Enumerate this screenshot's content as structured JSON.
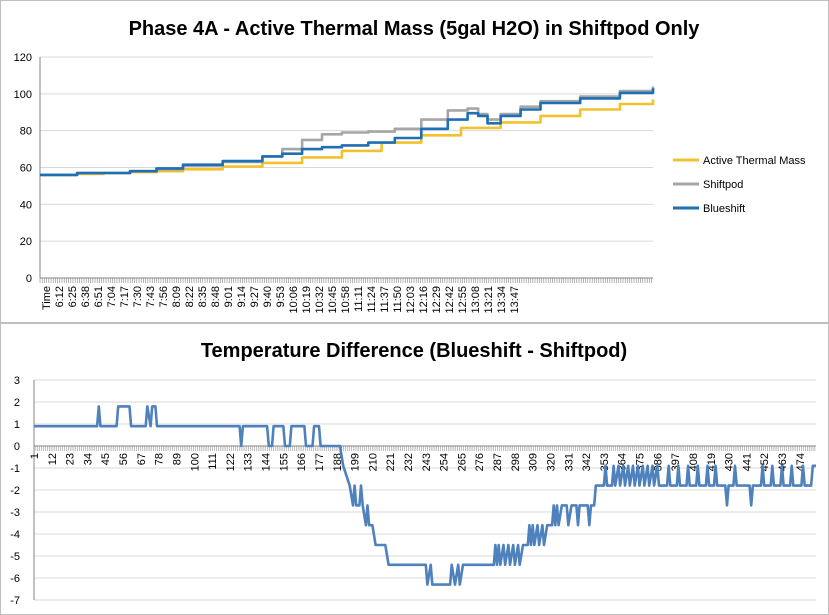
{
  "charts": [
    {
      "title": "Phase 4A - Active Thermal Mass (5gal H2O) in Shiftpod Only",
      "y_ticks": [
        "0",
        "20",
        "40",
        "60",
        "80",
        "100",
        "120"
      ],
      "x_first_label": "Time",
      "x_labels": [
        "6:12",
        "6:25",
        "6:38",
        "6:51",
        "7:04",
        "7:17",
        "7:30",
        "7:43",
        "7:56",
        "8:09",
        "8:22",
        "8:35",
        "8:48",
        "9:01",
        "9:14",
        "9:27",
        "9:40",
        "9:53",
        "10:06",
        "10:19",
        "10:32",
        "10:45",
        "10:58",
        "11:11",
        "11:24",
        "11:37",
        "11:50",
        "12:03",
        "12:16",
        "12:29",
        "12:42",
        "12:55",
        "13:08",
        "13:21",
        "13:34",
        "13:47"
      ],
      "legend": [
        "Active Thermal Mass",
        "Shiftpod",
        "Blueshift"
      ]
    },
    {
      "title": "Temperature Difference (Blueshift - Shiftpod)",
      "y_ticks": [
        "3",
        "2",
        "1",
        "0",
        "-1",
        "-2",
        "-3",
        "-4",
        "-5",
        "-6",
        "-7"
      ],
      "x_labels": [
        "1",
        "12",
        "23",
        "34",
        "45",
        "56",
        "67",
        "78",
        "89",
        "100",
        "111",
        "122",
        "133",
        "144",
        "155",
        "166",
        "177",
        "188",
        "199",
        "210",
        "221",
        "232",
        "243",
        "254",
        "265",
        "276",
        "287",
        "298",
        "309",
        "320",
        "331",
        "342",
        "353",
        "364",
        "375",
        "386",
        "397",
        "408",
        "419",
        "430",
        "441",
        "452",
        "463",
        "474"
      ]
    }
  ],
  "chart_data": [
    {
      "type": "line",
      "title": "Phase 4A - Active Thermal Mass (5gal H2O) in Shiftpod Only",
      "ylim": [
        0,
        120
      ],
      "x_range": [
        "6:12",
        "13:55"
      ],
      "legend_position": "right",
      "grid": true,
      "series": [
        {
          "name": "Active Thermal Mass",
          "color": "#f2c12e",
          "points": [
            [
              "6:00",
              56
            ],
            [
              "6:40",
              56.5
            ],
            [
              "7:00",
              57
            ],
            [
              "7:20",
              57.5
            ],
            [
              "7:40",
              58
            ],
            [
              "8:00",
              59
            ],
            [
              "8:30",
              60.5
            ],
            [
              "9:00",
              62.5
            ],
            [
              "9:30",
              65.5
            ],
            [
              "10:00",
              69
            ],
            [
              "10:30",
              73.5
            ],
            [
              "11:00",
              77.5
            ],
            [
              "11:30",
              81.5
            ],
            [
              "12:00",
              84.5
            ],
            [
              "12:30",
              88
            ],
            [
              "13:00",
              91.5
            ],
            [
              "13:30",
              94.5
            ],
            [
              "13:55",
              97
            ]
          ]
        },
        {
          "name": "Shiftpod",
          "color": "#a6a6a6",
          "points": [
            [
              "6:00",
              56
            ],
            [
              "6:40",
              57
            ],
            [
              "7:20",
              58
            ],
            [
              "7:40",
              59
            ],
            [
              "8:00",
              61
            ],
            [
              "8:30",
              63
            ],
            [
              "9:00",
              66
            ],
            [
              "9:15",
              70
            ],
            [
              "9:30",
              75
            ],
            [
              "9:45",
              78
            ],
            [
              "10:00",
              79
            ],
            [
              "10:20",
              79.5
            ],
            [
              "10:40",
              81
            ],
            [
              "11:00",
              86
            ],
            [
              "11:20",
              91
            ],
            [
              "11:35",
              92
            ],
            [
              "11:43",
              89
            ],
            [
              "11:50",
              86
            ],
            [
              "12:00",
              89
            ],
            [
              "12:15",
              93
            ],
            [
              "12:30",
              96
            ],
            [
              "13:00",
              98.5
            ],
            [
              "13:30",
              101.5
            ],
            [
              "13:55",
              104
            ]
          ]
        },
        {
          "name": "Blueshift",
          "color": "#1f6fb5",
          "points": [
            [
              "6:00",
              56
            ],
            [
              "6:40",
              57
            ],
            [
              "7:20",
              58
            ],
            [
              "7:40",
              59.5
            ],
            [
              "8:00",
              61.5
            ],
            [
              "8:30",
              63.5
            ],
            [
              "9:00",
              66
            ],
            [
              "9:15",
              67.5
            ],
            [
              "9:30",
              70
            ],
            [
              "9:45",
              71
            ],
            [
              "10:00",
              72
            ],
            [
              "10:20",
              73.5
            ],
            [
              "10:40",
              76
            ],
            [
              "11:00",
              81
            ],
            [
              "11:20",
              86
            ],
            [
              "11:35",
              89.5
            ],
            [
              "11:43",
              88
            ],
            [
              "11:50",
              84
            ],
            [
              "12:00",
              88
            ],
            [
              "12:15",
              91.5
            ],
            [
              "12:30",
              95
            ],
            [
              "13:00",
              97.5
            ],
            [
              "13:30",
              100.5
            ],
            [
              "13:55",
              103
            ]
          ]
        }
      ]
    },
    {
      "type": "line",
      "title": "Temperature Difference (Blueshift - Shiftpod)",
      "ylim": [
        -7,
        3
      ],
      "xlim": [
        1,
        484
      ],
      "grid": true,
      "series": [
        {
          "color": "#4f81bd",
          "points": [
            [
              1,
              0.9
            ],
            [
              40,
              0.9
            ],
            [
              41,
              1.8
            ],
            [
              42,
              0.9
            ],
            [
              52,
              0.9
            ],
            [
              53,
              1.8
            ],
            [
              60,
              1.8
            ],
            [
              61,
              0.9
            ],
            [
              70,
              0.9
            ],
            [
              71,
              1.8
            ],
            [
              73,
              0.9
            ],
            [
              74,
              1.8
            ],
            [
              76,
              1.8
            ],
            [
              77,
              0.9
            ],
            [
              128,
              0.9
            ],
            [
              129,
              0
            ],
            [
              130,
              0.9
            ],
            [
              145,
              0.9
            ],
            [
              146,
              0
            ],
            [
              148,
              0
            ],
            [
              149,
              0.9
            ],
            [
              155,
              0.9
            ],
            [
              156,
              0
            ],
            [
              159,
              0
            ],
            [
              160,
              0.9
            ],
            [
              168,
              0.9
            ],
            [
              169,
              0
            ],
            [
              173,
              0
            ],
            [
              174,
              0.9
            ],
            [
              177,
              0.9
            ],
            [
              178,
              0
            ],
            [
              190,
              0
            ],
            [
              192,
              -0.9
            ],
            [
              196,
              -1.8
            ],
            [
              198,
              -2.7
            ],
            [
              199,
              -1.8
            ],
            [
              200,
              -2.7
            ],
            [
              202,
              -2.7
            ],
            [
              203,
              -1.8
            ],
            [
              204,
              -2.7
            ],
            [
              206,
              -3.6
            ],
            [
              207,
              -2.7
            ],
            [
              208,
              -3.6
            ],
            [
              210,
              -3.6
            ],
            [
              212,
              -4.5
            ],
            [
              218,
              -4.5
            ],
            [
              220,
              -5.4
            ],
            [
              243,
              -5.4
            ],
            [
              244,
              -6.3
            ],
            [
              246,
              -5.4
            ],
            [
              247,
              -6.3
            ],
            [
              258,
              -6.3
            ],
            [
              259,
              -5.4
            ],
            [
              261,
              -6.3
            ],
            [
              263,
              -5.4
            ],
            [
              264,
              -6.3
            ],
            [
              266,
              -5.4
            ],
            [
              285,
              -5.4
            ],
            [
              286,
              -4.5
            ],
            [
              287,
              -5.4
            ],
            [
              288,
              -4.5
            ],
            [
              289,
              -5.4
            ],
            [
              291,
              -4.5
            ],
            [
              292,
              -5.4
            ],
            [
              294,
              -4.5
            ],
            [
              295,
              -5.4
            ],
            [
              297,
              -4.5
            ],
            [
              298,
              -5.4
            ],
            [
              300,
              -4.5
            ],
            [
              301,
              -5.4
            ],
            [
              303,
              -4.5
            ],
            [
              306,
              -4.5
            ],
            [
              307,
              -3.6
            ],
            [
              308,
              -4.5
            ],
            [
              309,
              -3.6
            ],
            [
              310,
              -4.5
            ],
            [
              312,
              -3.6
            ],
            [
              313,
              -4.5
            ],
            [
              315,
              -3.6
            ],
            [
              316,
              -4.5
            ],
            [
              318,
              -3.6
            ],
            [
              321,
              -3.6
            ],
            [
              322,
              -2.7
            ],
            [
              323,
              -3.6
            ],
            [
              324,
              -2.7
            ],
            [
              325,
              -3.6
            ],
            [
              327,
              -2.7
            ],
            [
              330,
              -2.7
            ],
            [
              331,
              -3.6
            ],
            [
              333,
              -2.7
            ],
            [
              336,
              -2.7
            ],
            [
              337,
              -3.6
            ],
            [
              338,
              -2.7
            ],
            [
              343,
              -2.7
            ],
            [
              344,
              -3.6
            ],
            [
              345,
              -2.7
            ],
            [
              347,
              -2.7
            ],
            [
              348,
              -1.8
            ],
            [
              353,
              -1.8
            ],
            [
              354,
              -0.9
            ],
            [
              355,
              -1.8
            ],
            [
              358,
              -1.8
            ],
            [
              359,
              -0.9
            ],
            [
              360,
              -1.8
            ],
            [
              362,
              -0.9
            ],
            [
              363,
              -1.8
            ],
            [
              365,
              -0.9
            ],
            [
              366,
              -1.8
            ],
            [
              368,
              -0.9
            ],
            [
              369,
              -1.8
            ],
            [
              371,
              -0.9
            ],
            [
              372,
              -1.8
            ],
            [
              374,
              -0.9
            ],
            [
              375,
              -1.8
            ],
            [
              377,
              -0.9
            ],
            [
              378,
              -1.8
            ],
            [
              380,
              -0.9
            ],
            [
              381,
              -1.8
            ],
            [
              383,
              -0.9
            ],
            [
              384,
              -1.8
            ],
            [
              386,
              -0.9
            ],
            [
              387,
              -1.8
            ],
            [
              392,
              -1.8
            ],
            [
              393,
              -0.9
            ],
            [
              394,
              -1.8
            ],
            [
              398,
              -1.8
            ],
            [
              399,
              -0.9
            ],
            [
              400,
              -1.8
            ],
            [
              404,
              -1.8
            ],
            [
              405,
              -0.9
            ],
            [
              406,
              -1.8
            ],
            [
              410,
              -1.8
            ],
            [
              411,
              -0.9
            ],
            [
              412,
              -1.8
            ],
            [
              416,
              -1.8
            ],
            [
              417,
              -0.9
            ],
            [
              418,
              -1.8
            ],
            [
              421,
              -1.8
            ],
            [
              422,
              -0.9
            ],
            [
              423,
              -1.8
            ],
            [
              428,
              -1.8
            ],
            [
              429,
              -2.7
            ],
            [
              430,
              -1.8
            ],
            [
              433,
              -1.8
            ],
            [
              434,
              -0.9
            ],
            [
              435,
              -1.8
            ],
            [
              443,
              -1.8
            ],
            [
              444,
              -2.7
            ],
            [
              445,
              -1.8
            ],
            [
              450,
              -1.8
            ],
            [
              451,
              -0.9
            ],
            [
              452,
              -1.8
            ],
            [
              456,
              -1.8
            ],
            [
              457,
              -0.9
            ],
            [
              458,
              -1.8
            ],
            [
              462,
              -1.8
            ],
            [
              463,
              -0.9
            ],
            [
              464,
              -1.8
            ],
            [
              468,
              -1.8
            ],
            [
              469,
              -0.9
            ],
            [
              470,
              -1.8
            ],
            [
              475,
              -1.8
            ],
            [
              476,
              -0.9
            ],
            [
              477,
              -1.8
            ],
            [
              481,
              -1.8
            ],
            [
              482,
              -0.9
            ],
            [
              484,
              -0.9
            ]
          ]
        }
      ]
    }
  ]
}
